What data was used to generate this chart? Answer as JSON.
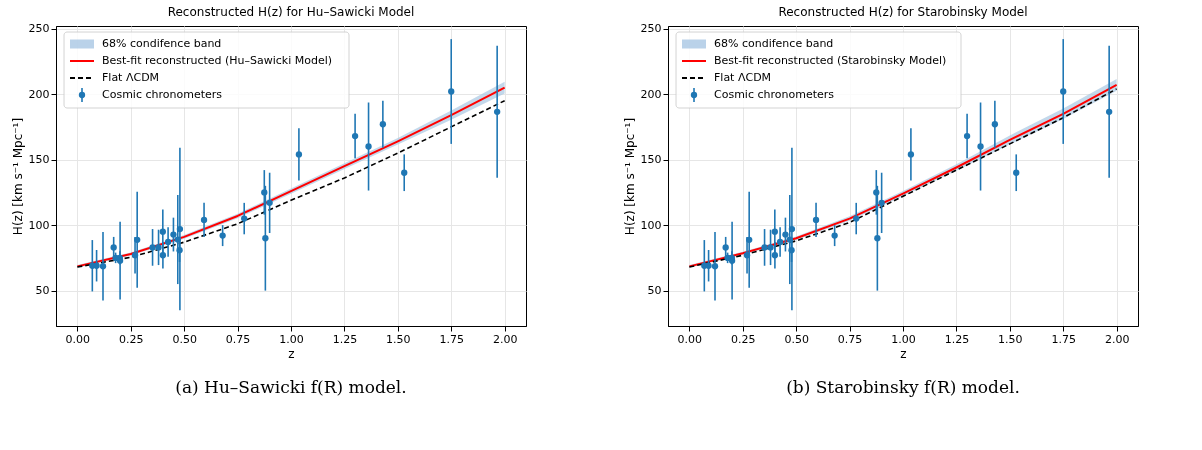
{
  "chart_data": [
    {
      "type": "line",
      "title": "Reconstructed H(z) for Hu–Sawicki Model",
      "xlabel": "z",
      "ylabel": "H(z) [km s⁻¹ Mpc⁻¹]",
      "annotations": [
        "68% condifence band",
        "(a) Hu–Sawicki f(R) model."
      ],
      "xlim": [
        -0.1,
        2.1
      ],
      "xticks": [
        {
          "value": 0,
          "label": "0.00"
        },
        {
          "value": 0.25,
          "label": "0.25"
        },
        {
          "value": 0.5,
          "label": "0.50"
        },
        {
          "value": 0.75,
          "label": "0.75"
        },
        {
          "value": 1,
          "label": "1.00"
        },
        {
          "value": 1.25,
          "label": "1.25"
        },
        {
          "value": 1.5,
          "label": "1.50"
        },
        {
          "value": 1.75,
          "label": "1.75"
        },
        {
          "value": 2,
          "label": "2.00"
        }
      ],
      "ylim": [
        23,
        252
      ],
      "yticks": [
        50,
        100,
        150,
        200,
        250
      ],
      "grid": true,
      "legend": "top left",
      "series": [
        {
          "name": "Best-fit reconstructed (Hu–Sawicki Model)",
          "type": "line",
          "color": "#ff0000",
          "line_style": "solid",
          "x": [
            0,
            0.25,
            0.5,
            0.75,
            1,
            1.25,
            1.5,
            1.75,
            2
          ],
          "values": [
            68.5,
            78,
            91,
            107,
            126,
            145,
            164,
            184,
            205
          ],
          "lower": [
            67.5,
            76.8,
            89.6,
            105.3,
            124,
            142.8,
            161.5,
            180.5,
            200.5
          ],
          "upper": [
            69.5,
            79.2,
            92.4,
            108.7,
            128,
            147.2,
            166.5,
            187.5,
            209.5
          ]
        },
        {
          "name": "Flat ΛCDM",
          "type": "line",
          "color": "#000000",
          "line_style": "dashed",
          "x": [
            0,
            0.25,
            0.5,
            0.75,
            1,
            1.25,
            1.5,
            1.75,
            2
          ],
          "values": [
            68,
            75.5,
            87,
            101,
            119,
            136,
            155,
            175,
            195
          ]
        },
        {
          "name": "Cosmic chronometers",
          "type": "scatter",
          "color": "#1f77b4",
          "marker": "circle",
          "x": [
            0.07,
            0.09,
            0.12,
            0.17,
            0.179,
            0.199,
            0.2,
            0.27,
            0.28,
            0.352,
            0.38,
            0.4,
            0.4004,
            0.4247,
            0.4497,
            0.47,
            0.4783,
            0.48,
            0.593,
            0.68,
            0.781,
            0.875,
            0.88,
            0.9,
            1.037,
            1.3,
            1.363,
            1.43,
            1.53,
            1.75,
            1.965
          ],
          "values": [
            69,
            69,
            68.6,
            83,
            75,
            75,
            72.9,
            77,
            88.8,
            83,
            83,
            95,
            77,
            87.1,
            92.8,
            89,
            80.9,
            97,
            104,
            92,
            105,
            125,
            90,
            117,
            154,
            168,
            160,
            177,
            140,
            202,
            186.5
          ],
          "errors": [
            19.6,
            12,
            26.2,
            8,
            4,
            5,
            29.6,
            14,
            36.6,
            14,
            13.5,
            17,
            10.2,
            11.2,
            12.9,
            34,
            9,
            62,
            13,
            8,
            12,
            17,
            40,
            23,
            20,
            17,
            33.6,
            18,
            14,
            40,
            50.4
          ]
        }
      ]
    },
    {
      "type": "line",
      "title": "Reconstructed H(z) for Starobinsky Model",
      "xlabel": "z",
      "ylabel": "H(z) [km s⁻¹ Mpc⁻¹]",
      "annotations": [
        "68% condifence band",
        "(b) Starobinsky f(R) model."
      ],
      "xlim": [
        -0.1,
        2.1
      ],
      "xticks": [
        {
          "value": 0,
          "label": "0.00"
        },
        {
          "value": 0.25,
          "label": "0.25"
        },
        {
          "value": 0.5,
          "label": "0.50"
        },
        {
          "value": 0.75,
          "label": "0.75"
        },
        {
          "value": 1,
          "label": "1.00"
        },
        {
          "value": 1.25,
          "label": "1.25"
        },
        {
          "value": 1.5,
          "label": "1.50"
        },
        {
          "value": 1.75,
          "label": "1.75"
        },
        {
          "value": 2,
          "label": "2.00"
        }
      ],
      "ylim": [
        23,
        252
      ],
      "yticks": [
        50,
        100,
        150,
        200,
        250
      ],
      "grid": true,
      "legend": "top left",
      "series": [
        {
          "name": "Best-fit reconstructed (Starobinsky Model)",
          "type": "line",
          "color": "#ff0000",
          "line_style": "solid",
          "x": [
            0,
            0.25,
            0.5,
            0.75,
            1,
            1.25,
            1.5,
            1.75,
            2
          ],
          "values": [
            68.5,
            78.5,
            90,
            105,
            124,
            144,
            165,
            185,
            207
          ],
          "lower": [
            67.5,
            77.3,
            88.6,
            103.3,
            122,
            141.5,
            161.5,
            181,
            202.5
          ],
          "upper": [
            69.5,
            79.7,
            91.4,
            106.7,
            126,
            146.5,
            168.5,
            189,
            211.5
          ]
        },
        {
          "name": "Flat ΛCDM",
          "type": "line",
          "color": "#000000",
          "line_style": "dashed",
          "x": [
            0,
            0.25,
            0.5,
            0.75,
            1,
            1.25,
            1.5,
            1.75,
            2
          ],
          "values": [
            68,
            77,
            88,
            102,
            122,
            142,
            162,
            182,
            204
          ]
        },
        {
          "name": "Cosmic chronometers",
          "type": "scatter",
          "color": "#1f77b4",
          "marker": "circle",
          "x": [
            0.07,
            0.09,
            0.12,
            0.17,
            0.179,
            0.199,
            0.2,
            0.27,
            0.28,
            0.352,
            0.38,
            0.4,
            0.4004,
            0.4247,
            0.4497,
            0.47,
            0.4783,
            0.48,
            0.593,
            0.68,
            0.781,
            0.875,
            0.88,
            0.9,
            1.037,
            1.3,
            1.363,
            1.43,
            1.53,
            1.75,
            1.965
          ],
          "values": [
            69,
            69,
            68.6,
            83,
            75,
            75,
            72.9,
            77,
            88.8,
            83,
            83,
            95,
            77,
            87.1,
            92.8,
            89,
            80.9,
            97,
            104,
            92,
            105,
            125,
            90,
            117,
            154,
            168,
            160,
            177,
            140,
            202,
            186.5
          ],
          "errors": [
            19.6,
            12,
            26.2,
            8,
            4,
            5,
            29.6,
            14,
            36.6,
            14,
            13.5,
            17,
            10.2,
            11.2,
            12.9,
            34,
            9,
            62,
            13,
            8,
            12,
            17,
            40,
            23,
            20,
            17,
            33.6,
            18,
            14,
            40,
            50.4
          ]
        }
      ]
    }
  ]
}
